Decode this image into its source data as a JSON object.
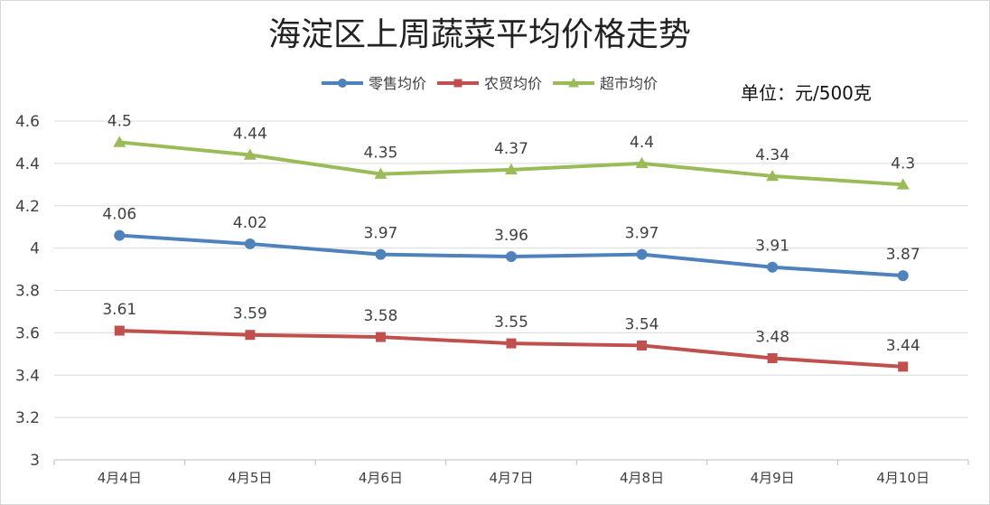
{
  "chart_data": {
    "type": "line",
    "title": "海淀区上周蔬菜平均价格走势",
    "unit_note": "单位：元/500克",
    "categories": [
      "4月4日",
      "4月5日",
      "4月6日",
      "4月7日",
      "4月8日",
      "4月9日",
      "4月10日"
    ],
    "ylim": [
      3,
      4.6
    ],
    "yticks": [
      3,
      3.2,
      3.4,
      3.6,
      3.8,
      4,
      4.2,
      4.4,
      4.6
    ],
    "grid": true,
    "legend_position": "top",
    "series": [
      {
        "name": "零售均价",
        "color": "#4f81bd",
        "marker": "circle",
        "values": [
          4.06,
          4.02,
          3.97,
          3.96,
          3.97,
          3.91,
          3.87
        ]
      },
      {
        "name": "农贸均价",
        "color": "#c0504d",
        "marker": "square",
        "values": [
          3.61,
          3.59,
          3.58,
          3.55,
          3.54,
          3.48,
          3.44
        ]
      },
      {
        "name": "超市均价",
        "color": "#9bbb59",
        "marker": "triangle",
        "values": [
          4.5,
          4.44,
          4.35,
          4.37,
          4.4,
          4.34,
          4.3
        ]
      }
    ]
  }
}
